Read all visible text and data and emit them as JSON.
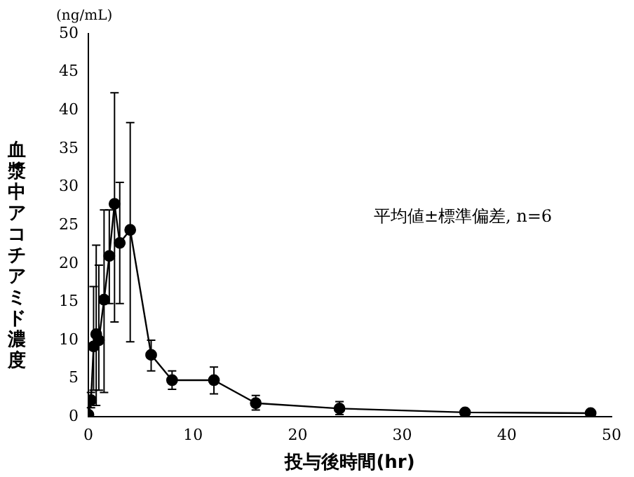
{
  "chart_data": {
    "type": "line",
    "xlabel": "投与後時間(hr)",
    "ylabel": "血漿中アコチアミド濃度",
    "annotations": [
      "(ng/mL)",
      "平均値±標準偏差, n=6"
    ],
    "x": [
      0,
      0.25,
      0.5,
      0.75,
      1,
      1.5,
      2,
      2.5,
      3,
      4,
      6,
      8,
      12,
      16,
      24,
      36,
      48
    ],
    "series": [
      {
        "color": "#000000",
        "values": [
          0.3,
          2.2,
          9.2,
          10.8,
          10,
          15.3,
          21,
          27.8,
          22.7,
          24.4,
          8.1,
          4.8,
          4.8,
          1.8,
          1.1,
          0.6,
          0.5
        ],
        "errors": [
          null,
          [
            1.2,
            3.2
          ],
          [
            3.5,
            17
          ],
          [
            1.5,
            22.4
          ],
          [
            3.5,
            19.8
          ],
          [
            3.2,
            27
          ],
          [
            14.8,
            27
          ],
          [
            12.4,
            42.3
          ],
          [
            14.8,
            30.6
          ],
          [
            9.8,
            38.4
          ],
          [
            6,
            10
          ],
          [
            3.6,
            6
          ],
          [
            3,
            6.5
          ],
          [
            0.9,
            2.8
          ],
          [
            0.3,
            2
          ],
          null,
          null
        ]
      }
    ],
    "xlim": [
      0,
      50
    ],
    "xticks": [
      0,
      10,
      20,
      30,
      40,
      50
    ],
    "ylim": [
      0,
      50
    ],
    "yticks": [
      0,
      5,
      10,
      15,
      20,
      25,
      30,
      35,
      40,
      45,
      50
    ],
    "grid": false,
    "marker": "circle",
    "line_style": "solid"
  }
}
